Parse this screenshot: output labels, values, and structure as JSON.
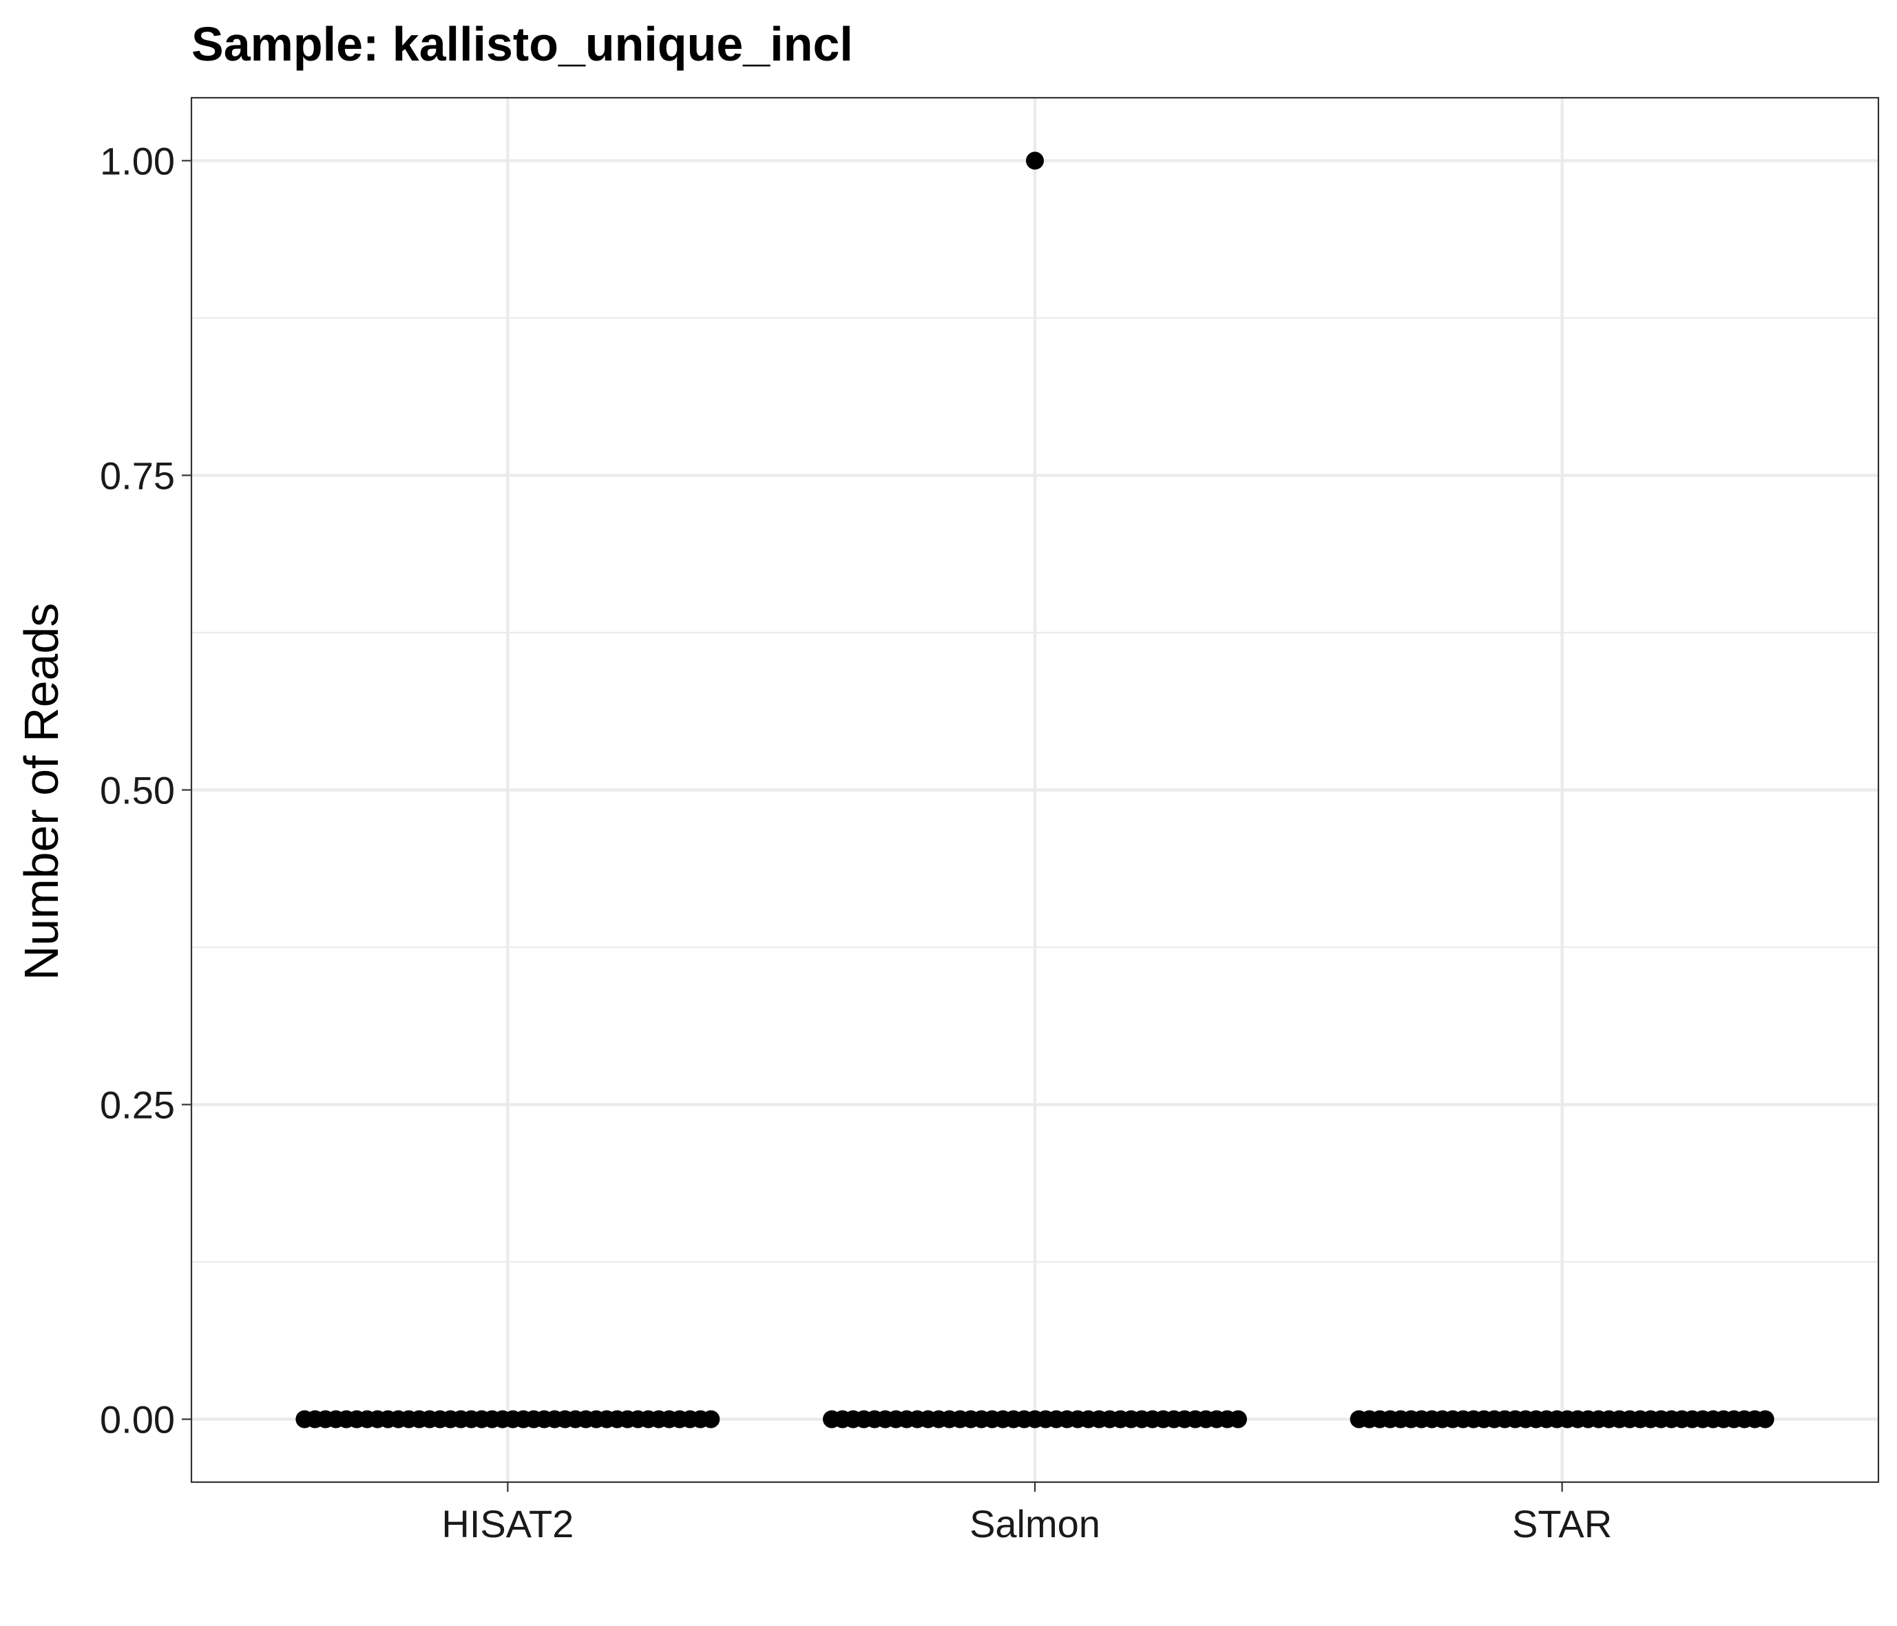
{
  "chart_data": {
    "type": "scatter",
    "title": "Sample: kallisto_unique_incl",
    "xlabel": "",
    "ylabel": "Number of Reads",
    "categories": [
      "HISAT2",
      "Salmon",
      "STAR"
    ],
    "ylim": [
      -0.05,
      1.05
    ],
    "yticks": [
      0,
      0.25,
      0.5,
      0.75,
      1
    ],
    "ytick_labels": [
      "0.00",
      "0.25",
      "0.50",
      "0.75",
      "1.00"
    ],
    "grid": true,
    "legend": "none",
    "series": [
      {
        "category": "HISAT2",
        "values": [
          0,
          0,
          0,
          0,
          0,
          0,
          0,
          0,
          0,
          0,
          0,
          0,
          0,
          0,
          0,
          0,
          0,
          0,
          0,
          0,
          0,
          0,
          0,
          0,
          0,
          0,
          0,
          0,
          0,
          0,
          0,
          0,
          0,
          0,
          0,
          0,
          0,
          0,
          0,
          0
        ]
      },
      {
        "category": "Salmon",
        "values": [
          0,
          0,
          0,
          0,
          0,
          0,
          0,
          0,
          0,
          0,
          0,
          0,
          0,
          0,
          0,
          0,
          0,
          0,
          0,
          1,
          0,
          0,
          0,
          0,
          0,
          0,
          0,
          0,
          0,
          0,
          0,
          0,
          0,
          0,
          0,
          0,
          0,
          0,
          0,
          0
        ]
      },
      {
        "category": "STAR",
        "values": [
          0,
          0,
          0,
          0,
          0,
          0,
          0,
          0,
          0,
          0,
          0,
          0,
          0,
          0,
          0,
          0,
          0,
          0,
          0,
          0,
          0,
          0,
          0,
          0,
          0,
          0,
          0,
          0,
          0,
          0,
          0,
          0,
          0,
          0,
          0,
          0,
          0,
          0,
          0,
          0
        ]
      }
    ],
    "point_color": "#000000",
    "grid_color": "#ebebeb",
    "panel_border_color": "#333333"
  }
}
